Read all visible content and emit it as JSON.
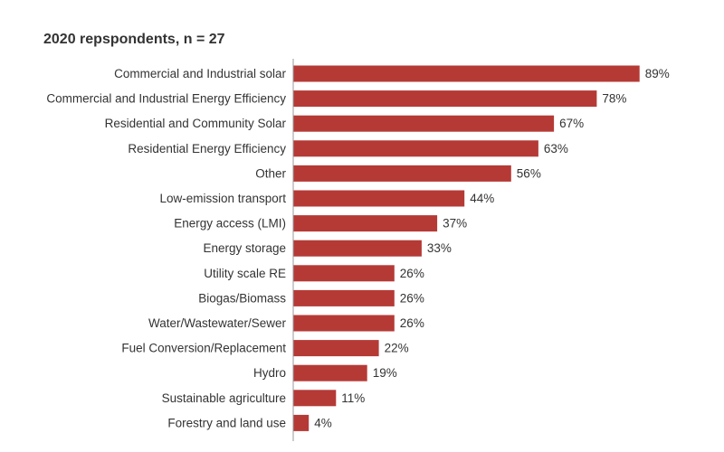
{
  "chart_data": {
    "type": "bar",
    "orientation": "horizontal",
    "title": "2020 repspondents, n = 27",
    "xlabel": "",
    "ylabel": "",
    "xlim": [
      0,
      100
    ],
    "grid": false,
    "legend": "none",
    "bar_color": "#b53a36",
    "value_suffix": "%",
    "categories": [
      "Commercial and Industrial solar",
      "Commercial and Industrial Energy Efficiency",
      "Residential and Community Solar",
      "Residential Energy Efficiency",
      "Other",
      "Low-emission transport",
      "Energy access (LMI)",
      "Energy storage",
      "Utility scale RE",
      "Biogas/Biomass",
      "Water/Wastewater/Sewer",
      "Fuel Conversion/Replacement",
      "Hydro",
      "Sustainable agriculture",
      "Forestry and land use"
    ],
    "values": [
      89,
      78,
      67,
      63,
      56,
      44,
      37,
      33,
      26,
      26,
      26,
      22,
      19,
      11,
      4
    ]
  }
}
